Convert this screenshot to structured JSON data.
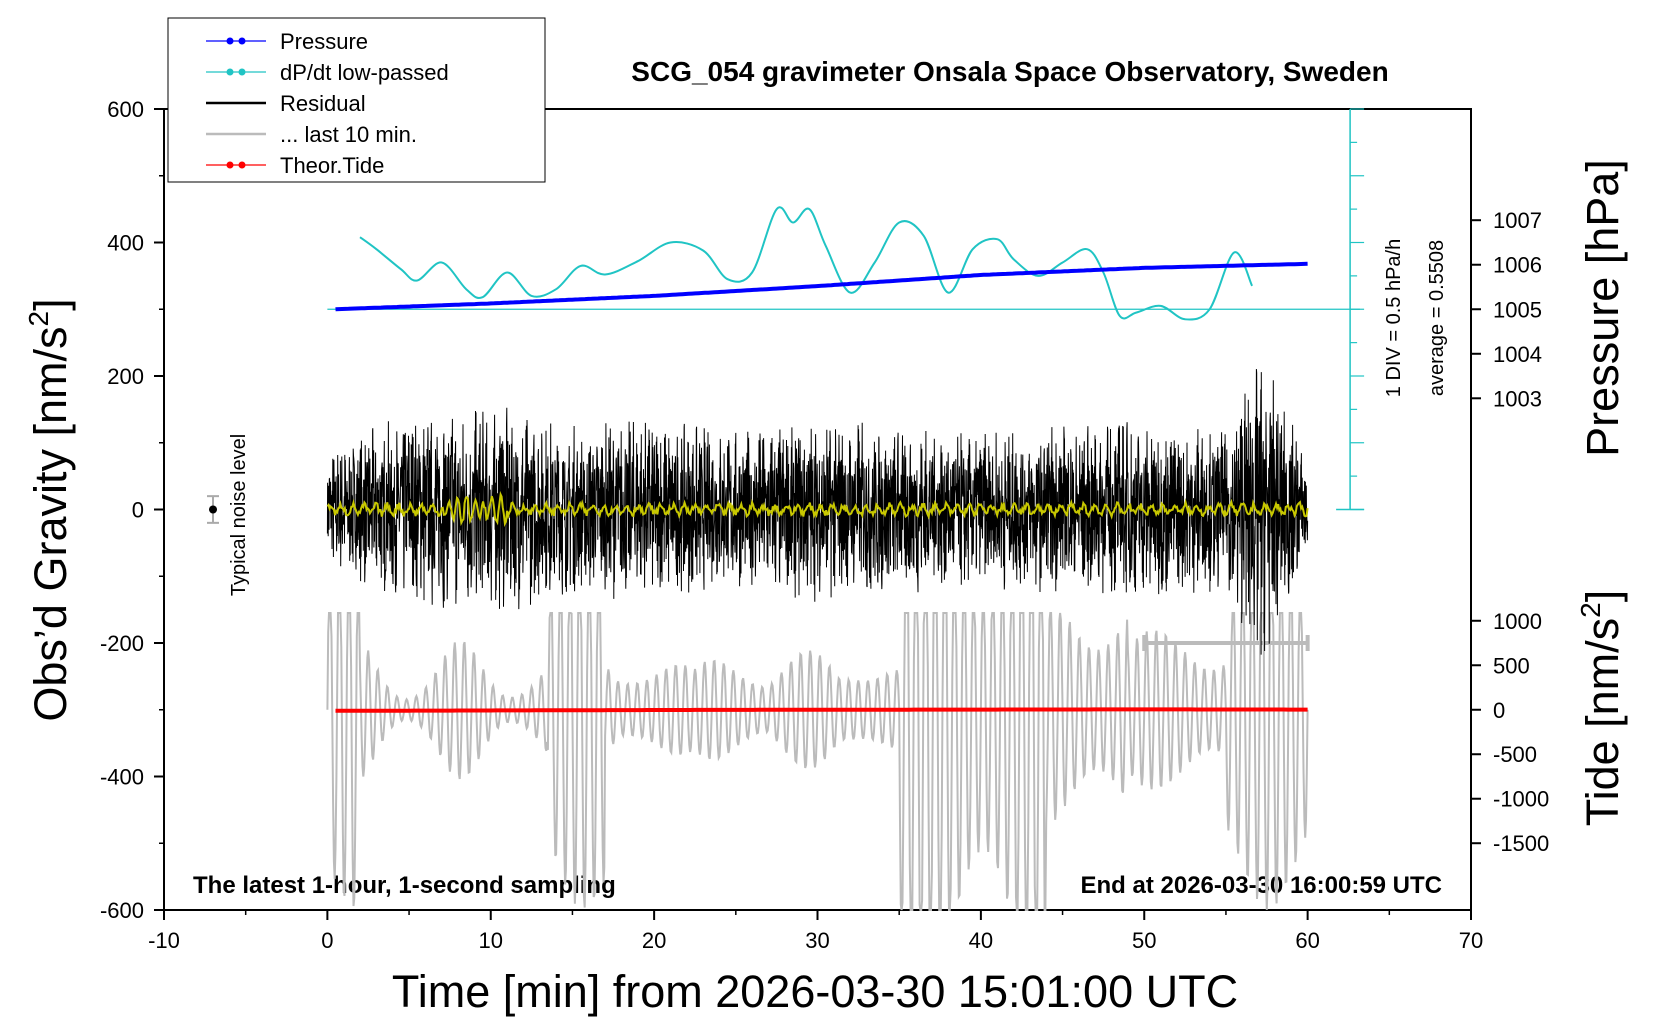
{
  "chart_data": {
    "type": "line",
    "title": "SCG_054 gravimeter Onsala Space Observatory, Sweden",
    "xlabel": "Time [min] from 2026-03-30 15:01:00 UTC",
    "ylabel_left": "Obs’d Gravity [nm/s²]",
    "ylabel_left_parts": {
      "base": "Obs’d Gravity [nm/s",
      "sup": "2",
      "end": "]"
    },
    "ylabel_right_top": "Pressure [hPa]",
    "ylabel_right_bottom_parts": {
      "base": "Tide [nm/s",
      "sup": "2",
      "end": "]"
    },
    "xlim": [
      -10,
      70
    ],
    "ylim": [
      -600,
      600
    ],
    "x_ticks": [
      "-10",
      "0",
      "10",
      "20",
      "30",
      "40",
      "50",
      "60",
      "70"
    ],
    "y_ticks_left": [
      "600",
      "400",
      "200",
      "0",
      "-200",
      "-400",
      "-600"
    ],
    "pressure_axis": {
      "ticks": [
        "1007",
        "1006",
        "1005",
        "1004",
        "1003"
      ],
      "values": [
        1007,
        1006,
        1005,
        1004,
        1003
      ]
    },
    "tide_axis": {
      "ticks": [
        "1000",
        "500",
        "0",
        "-500",
        "-1000",
        "-1500"
      ],
      "values": [
        1000,
        500,
        0,
        -500,
        -1000,
        -1500
      ]
    },
    "legend": {
      "position": "top-left",
      "entries": [
        {
          "label": "Pressure",
          "color": "#0000ff",
          "marker": true
        },
        {
          "label": "dP/dt low-passed",
          "color": "#20c4c4",
          "marker": true
        },
        {
          "label": "Residual",
          "color": "#000000",
          "marker": false
        },
        {
          "label": "... last 10 min.",
          "color": "#bbbbbb",
          "marker": false
        },
        {
          "label": "Theor.Tide",
          "color": "#ff0000",
          "marker": true
        }
      ]
    },
    "annotations": {
      "noise": "Typical noise level",
      "bottom_left": "The latest 1-hour, 1-second sampling",
      "bottom_right": "End at 2026-03-30 16:00:59 UTC",
      "dpdt_scale": "1 DIV = 0.5 hPa/h",
      "dpdt_average": "average = 0.5508"
    },
    "series": [
      {
        "name": "Pressure",
        "unit": "hPa",
        "color": "#0000ff",
        "x": [
          0.5,
          10,
          20,
          30,
          40,
          50,
          60
        ],
        "y": [
          1005.0,
          1005.13,
          1005.3,
          1005.52,
          1005.77,
          1005.93,
          1006.02
        ]
      },
      {
        "name": "dP/dt low-passed",
        "unit": "gravity-axis",
        "color": "#20c4c4",
        "x": [
          2,
          3,
          4.5,
          5.5,
          7,
          8.5,
          9.5,
          11,
          12.5,
          14,
          15.5,
          17,
          19,
          21,
          23,
          24.5,
          26,
          27.5,
          28.5,
          29.5,
          30.5,
          32,
          33.5,
          35,
          36.5,
          38,
          39.5,
          41,
          42,
          43.5,
          45,
          46.5,
          47.5,
          48.5,
          49.5,
          51,
          52.5,
          54,
          55.5,
          56.6
        ],
        "y": [
          408,
          390,
          360,
          343,
          370,
          330,
          318,
          355,
          320,
          330,
          365,
          352,
          372,
          400,
          388,
          345,
          355,
          450,
          430,
          450,
          395,
          325,
          370,
          430,
          410,
          325,
          390,
          405,
          375,
          350,
          370,
          390,
          355,
          290,
          295,
          305,
          285,
          300,
          385,
          335
        ]
      },
      {
        "name": "Theor.Tide",
        "unit": "nm/s²",
        "color": "#ff0000",
        "x": [
          0.5,
          10,
          20,
          30,
          40,
          50,
          60
        ],
        "y": [
          -12,
          -8,
          -3,
          0,
          2,
          4,
          2
        ]
      },
      {
        "name": "Residual",
        "unit": "nm/s²",
        "color": "#000000",
        "x": [
          0,
          5,
          10,
          15,
          20,
          25,
          30,
          35,
          40,
          45,
          50,
          55,
          57,
          60
        ],
        "amplitude": [
          90,
          150,
          160,
          130,
          140,
          120,
          140,
          130,
          120,
          130,
          140,
          120,
          250,
          80
        ]
      },
      {
        "name": "... last 10 min.",
        "unit": "nm/s²",
        "color": "#bbbbbb",
        "x_window": [
          50,
          60
        ]
      }
    ]
  }
}
